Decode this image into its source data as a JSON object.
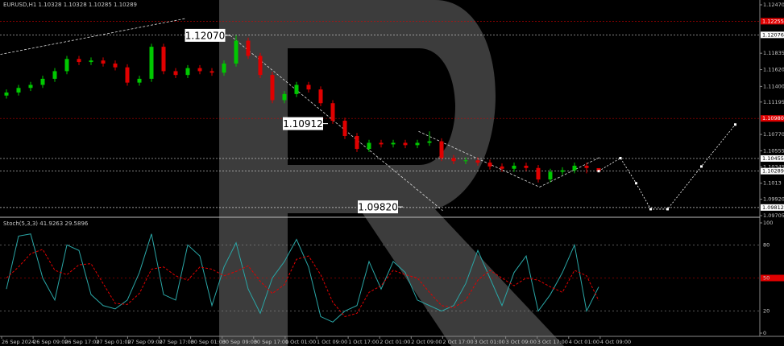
{
  "chart_data": {
    "type": "candlestick",
    "title": "EURUSD,H1 1.10328 1.10328 1.10285 1.10289",
    "up_color": "#00c800",
    "down_color": "#e00000",
    "ylim": [
      1.09705,
      1.1247
    ],
    "yticks": [
      {
        "value": 1.1247,
        "label": "1.12470"
      },
      1.11835,
      {
        "value": 1.1162,
        "label": "1.11620"
      },
      {
        "value": 1.114,
        "label": "1.11400"
      },
      1.11195,
      {
        "value": 1.1077,
        "label": "1.10770"
      },
      1.10555,
      1.10345,
      1.1013,
      {
        "value": 1.0992,
        "label": "1.09920"
      },
      1.09705
    ],
    "levels": [
      {
        "value": 1.12255,
        "color": "#e00000"
      },
      {
        "value": 1.12076,
        "color": "#ffffff"
      },
      {
        "value": 1.1098,
        "label": "1.10980",
        "color": "#e00000"
      },
      {
        "value": 1.10455,
        "color": "#ffffff"
      },
      {
        "value": 1.10289,
        "color": "#ffffff"
      },
      {
        "value": 1.09812,
        "color": "#ffffff"
      }
    ],
    "annotations": [
      {
        "x": 18.5,
        "value": 1.1207,
        "label": "1.12070"
      },
      {
        "x": 26.6,
        "value": 1.10912,
        "label": "1.10912"
      },
      {
        "x": 32.8,
        "value": 1.0982,
        "label": "1.09820"
      }
    ],
    "xticks": [
      "26 Sep 2024",
      "26 Sep 09:00",
      "26 Sep 17:00",
      "27 Sep 01:00",
      "27 Sep 09:00",
      "27 Sep 17:00",
      "30 Sep 01:00",
      "30 Sep 09:00",
      "30 Sep 17:00",
      "1 Oct 01:00",
      "1 Oct 09:00",
      "1 Oct 17:00",
      "2 Oct 01:00",
      "2 Oct 09:00",
      "2 Oct 17:00",
      "3 Oct 01:00",
      "3 Oct 09:00",
      "3 Oct 17:00",
      "4 Oct 01:00",
      "4 Oct 09:00"
    ],
    "candles": [
      [
        1.1128,
        1.1136,
        1.1124,
        1.1132
      ],
      [
        1.1132,
        1.1142,
        1.1128,
        1.1138
      ],
      [
        1.1138,
        1.1146,
        1.1134,
        1.1142
      ],
      [
        1.1142,
        1.1154,
        1.1138,
        1.115
      ],
      [
        1.115,
        1.1164,
        1.1146,
        1.116
      ],
      [
        1.116,
        1.118,
        1.1156,
        1.1176
      ],
      [
        1.1176,
        1.118,
        1.1168,
        1.1172
      ],
      [
        1.1172,
        1.1178,
        1.1168,
        1.1174
      ],
      [
        1.1174,
        1.1178,
        1.1166,
        1.117
      ],
      [
        1.117,
        1.1174,
        1.1161,
        1.1165
      ],
      [
        1.1165,
        1.1169,
        1.1141,
        1.1145
      ],
      [
        1.1145,
        1.1154,
        1.1141,
        1.115
      ],
      [
        1.115,
        1.1196,
        1.1146,
        1.1192
      ],
      [
        1.1192,
        1.1196,
        1.1156,
        1.116
      ],
      [
        1.116,
        1.1164,
        1.1151,
        1.1155
      ],
      [
        1.1155,
        1.1168,
        1.1151,
        1.1164
      ],
      [
        1.1164,
        1.1168,
        1.1156,
        1.116
      ],
      [
        1.116,
        1.1164,
        1.1154,
        1.1158
      ],
      [
        1.1158,
        1.1174,
        1.1154,
        1.117
      ],
      [
        1.117,
        1.1207,
        1.1166,
        1.12
      ],
      [
        1.12,
        1.1204,
        1.1176,
        1.118
      ],
      [
        1.118,
        1.1184,
        1.1151,
        1.1155
      ],
      [
        1.1155,
        1.1159,
        1.1118,
        1.1122
      ],
      [
        1.1122,
        1.1134,
        1.1118,
        1.113
      ],
      [
        1.113,
        1.1146,
        1.1126,
        1.1142
      ],
      [
        1.1142,
        1.1146,
        1.1132,
        1.1136
      ],
      [
        1.1136,
        1.114,
        1.1114,
        1.1118
      ],
      [
        1.1118,
        1.1122,
        1.1091,
        1.1095
      ],
      [
        1.1095,
        1.1099,
        1.1071,
        1.1075
      ],
      [
        1.1075,
        1.1079,
        1.1054,
        1.1058
      ],
      [
        1.1058,
        1.107,
        1.1054,
        1.1066
      ],
      [
        1.1066,
        1.107,
        1.106,
        1.1064
      ],
      [
        1.1064,
        1.107,
        1.106,
        1.1066
      ],
      [
        1.1066,
        1.107,
        1.1059,
        1.1063
      ],
      [
        1.1063,
        1.107,
        1.1059,
        1.1066
      ],
      [
        1.1066,
        1.1081,
        1.1062,
        1.1068
      ],
      [
        1.1068,
        1.1072,
        1.1042,
        1.1046
      ],
      [
        1.1046,
        1.105,
        1.1038,
        1.1042
      ],
      [
        1.1042,
        1.1047,
        1.1038,
        1.1043
      ],
      [
        1.1043,
        1.1047,
        1.1036,
        1.104
      ],
      [
        1.104,
        1.1044,
        1.1031,
        1.1035
      ],
      [
        1.1035,
        1.1039,
        1.1028,
        1.1032
      ],
      [
        1.1032,
        1.104,
        1.1028,
        1.1036
      ],
      [
        1.1036,
        1.104,
        1.1029,
        1.1033
      ],
      [
        1.1033,
        1.1037,
        1.1014,
        1.1018
      ],
      [
        1.1018,
        1.1032,
        1.1014,
        1.1028
      ],
      [
        1.1028,
        1.1034,
        1.1024,
        1.103
      ],
      [
        1.103,
        1.104,
        1.1026,
        1.1036
      ],
      [
        1.1036,
        1.104,
        1.1026,
        1.1033
      ],
      [
        1.10328,
        1.10328,
        1.10285,
        1.10289
      ]
    ],
    "forecast": {
      "color": "#ffffff",
      "x": [
        49,
        50.8,
        52.1,
        53.3,
        54.7,
        57.5,
        60.3
      ],
      "values": [
        1.10289,
        1.1046,
        1.1013,
        1.0979,
        1.0979,
        1.1035,
        1.109
      ]
    },
    "trendlines": [
      {
        "x": [
          -0.5,
          14.8
        ],
        "values": [
          1.1182,
          1.1229
        ]
      },
      {
        "x": [
          18.5,
          36.1
        ],
        "values": [
          1.1207,
          1.0977
        ]
      },
      {
        "x": [
          34.1,
          44.1
        ],
        "values": [
          1.1081,
          1.1008
        ]
      },
      {
        "x": [
          44.1,
          49.1
        ],
        "values": [
          1.1008,
          1.1047
        ]
      }
    ],
    "indicator": {
      "type": "line",
      "title": "Stoch(5,3,3) 41.9263 29.5896",
      "ylim": [
        0,
        100
      ],
      "yticks": [
        100,
        80,
        50,
        20,
        0
      ],
      "highlight_tick": 50,
      "series": [
        {
          "name": "Main",
          "color": "#2aa6a6",
          "values": [
            40,
            88,
            90,
            50,
            30,
            80,
            75,
            35,
            25,
            22,
            30,
            55,
            90,
            35,
            30,
            80,
            70,
            25,
            60,
            82,
            40,
            18,
            50,
            65,
            85,
            60,
            15,
            10,
            20,
            25,
            65,
            40,
            65,
            55,
            30,
            25,
            20,
            25,
            45,
            75,
            50,
            25,
            55,
            70,
            20,
            35,
            55,
            80,
            20,
            41.9263
          ]
        },
        {
          "name": "Signal",
          "color": "#e00000",
          "values": [
            50,
            60,
            72,
            76,
            57,
            53,
            62,
            63,
            45,
            27,
            26,
            36,
            58,
            60,
            52,
            48,
            60,
            58,
            52,
            56,
            61,
            47,
            36,
            44,
            67,
            70,
            53,
            28,
            15,
            18,
            37,
            43,
            57,
            53,
            50,
            37,
            25,
            23,
            30,
            48,
            57,
            50,
            43,
            50,
            48,
            42,
            37,
            57,
            52,
            29.5896
          ]
        }
      ]
    }
  }
}
